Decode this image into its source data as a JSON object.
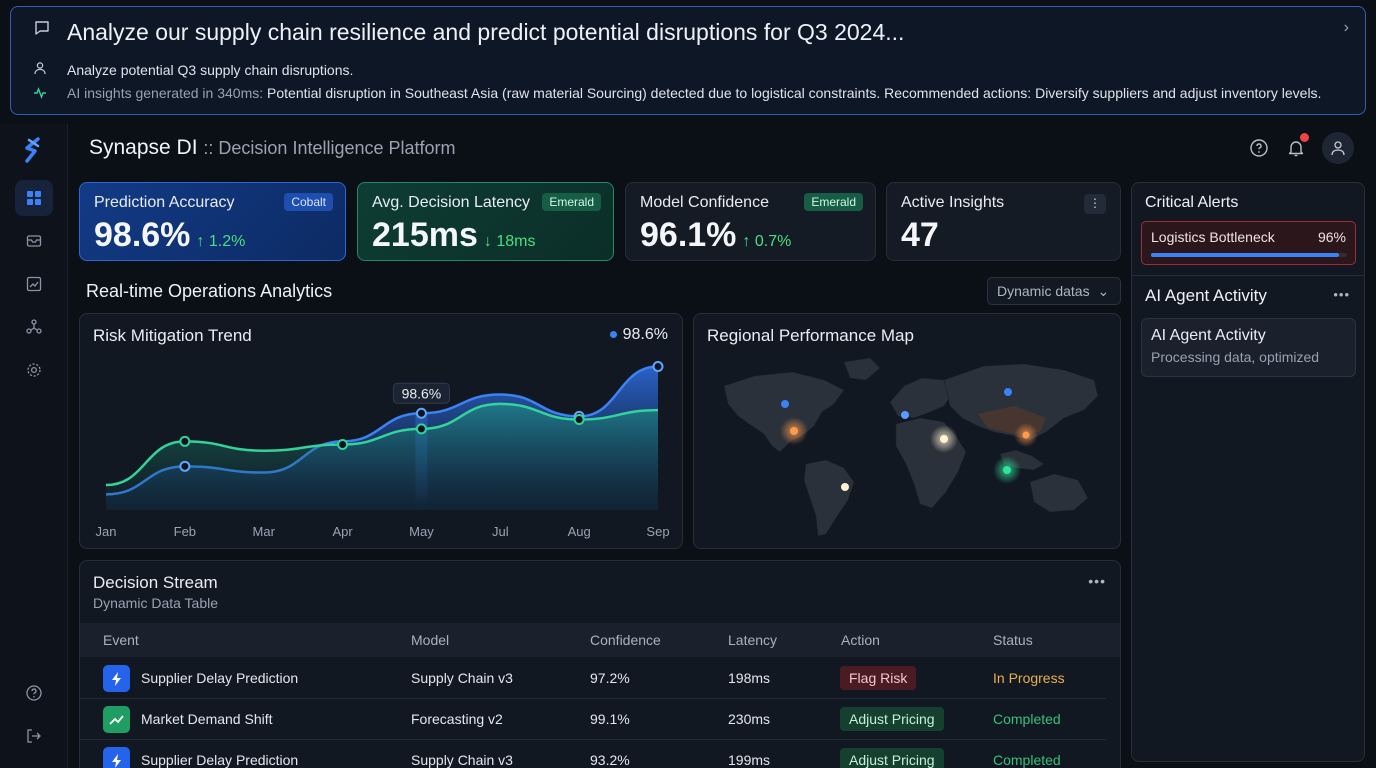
{
  "prompt": {
    "query": "Analyze our supply chain resilience and predict potential disruptions for Q3 2024...",
    "user_line": "Analyze potential Q3 supply chain disruptions.",
    "insight_prefix": "AI insights generated in 340ms:",
    "insight_text": "Potential disruption in Southeast Asia (raw material Sourcing) detected due to logistical constraints. Recommended actions: Diversify suppliers and adjust inventory levels."
  },
  "header": {
    "app_name": "Synapse DI",
    "app_subtitle": ":: Decision Intelligence Platform"
  },
  "sidebar": {
    "items": [
      "dashboard",
      "inbox",
      "analytics",
      "integrations",
      "settings"
    ],
    "bottom": [
      "help",
      "logout"
    ]
  },
  "kpis": [
    {
      "label": "Prediction Accuracy",
      "value": "98.6%",
      "delta": "↑ 1.2%",
      "tag": "Cobalt"
    },
    {
      "label": "Avg. Decision Latency",
      "value": "215ms",
      "delta": "↓ 18ms",
      "tag": "Emerald"
    },
    {
      "label": "Model Confidence",
      "value": "96.1%",
      "delta": "↑ 0.7%",
      "tag": "Emerald"
    },
    {
      "label": "Active Insights",
      "value": "47"
    }
  ],
  "colors": {
    "accent_blue": "#3b82f6",
    "accent_green": "#34d399",
    "status_progress": "#e8b04a",
    "status_completed": "#34c27a"
  },
  "analytics": {
    "section_title": "Real-time Operations Analytics",
    "dropdown_value": "Dynamic datas"
  },
  "trend": {
    "title": "Risk Mitigation Trend",
    "legend_value": "98.6%",
    "tooltip": "98.6%"
  },
  "chart_data": {
    "type": "area",
    "title": "Risk Mitigation Trend",
    "categories": [
      "Jan",
      "Feb",
      "Mar",
      "Apr",
      "May",
      "Jul",
      "Aug",
      "Sep"
    ],
    "series": [
      {
        "values": [
          5,
          14,
          12,
          22,
          31,
          37,
          30,
          46
        ]
      },
      {
        "values": [
          8,
          22,
          19,
          21,
          26,
          34,
          29,
          32
        ]
      }
    ],
    "ylim": [
      0,
      50
    ],
    "highlight_label": "98.6%"
  },
  "map": {
    "title": "Regional Performance Map"
  },
  "stream": {
    "title": "Decision Stream",
    "subtitle": "Dynamic Data Table",
    "columns": [
      "Event",
      "Model",
      "Confidence",
      "Latency",
      "Action",
      "Status"
    ],
    "rows": [
      {
        "event": "Supplier Delay Prediction",
        "model": "Supply Chain v3",
        "confidence": "97.2%",
        "latency": "198ms",
        "action": "Flag Risk",
        "status": "In Progress",
        "icon": "lightning-icon"
      },
      {
        "event": "Market Demand Shift",
        "model": "Forecasting v2",
        "confidence": "99.1%",
        "latency": "230ms",
        "action": "Adjust Pricing",
        "status": "Completed",
        "icon": "trend-up-icon"
      },
      {
        "event": "Supplier Delay Prediction",
        "model": "Supply Chain v3",
        "confidence": "93.2%",
        "latency": "199ms",
        "action": "Adjust Pricing",
        "status": "Completed",
        "icon": "lightning-icon"
      }
    ]
  },
  "alerts": {
    "title": "Critical Alerts",
    "items": [
      {
        "label": "Logistics Bottleneck",
        "percent": "96%",
        "level": 0.96
      }
    ]
  },
  "agent": {
    "section_title": "AI Agent Activity",
    "card_title": "AI Agent Activity",
    "card_text": "Processing data, optimized"
  }
}
